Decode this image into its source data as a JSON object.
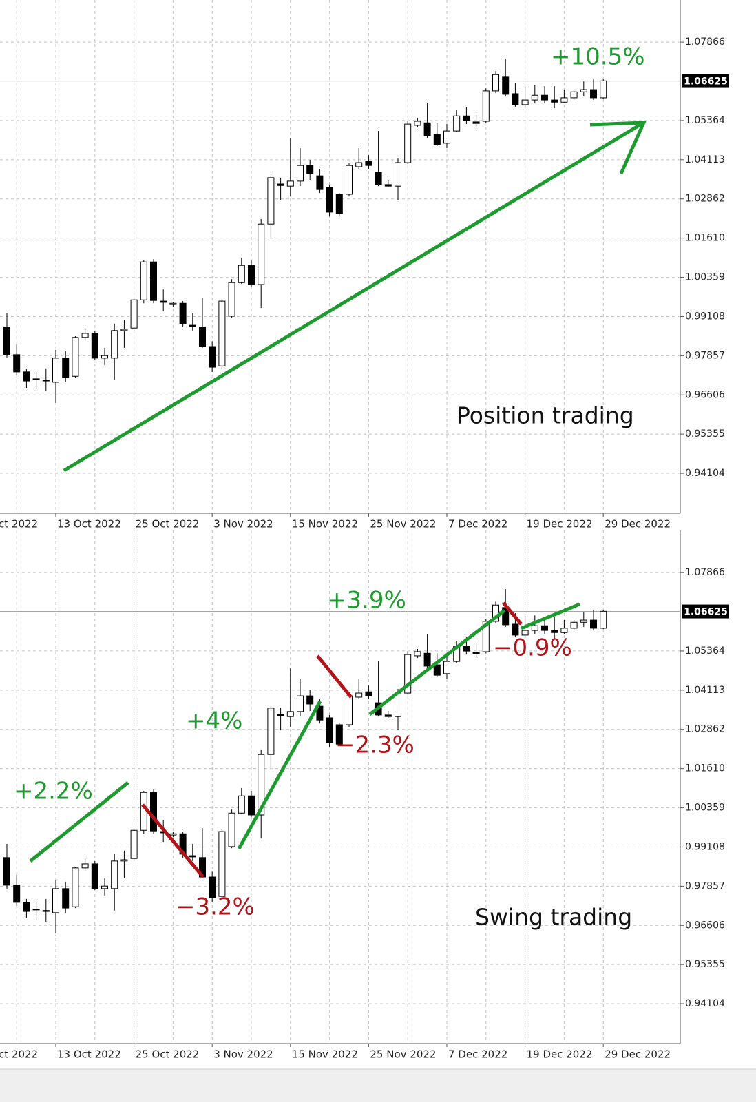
{
  "chart_data": [
    {
      "type": "candlestick",
      "title": "Position trading",
      "categories": [
        null,
        null,
        null,
        null,
        null,
        "13 Oct 2022",
        null,
        null,
        null,
        null,
        null,
        null,
        null,
        "25 Oct 2022",
        null,
        null,
        null,
        null,
        null,
        null,
        null,
        "3 Nov 2022",
        null,
        null,
        null,
        null,
        null,
        null,
        null,
        "15 Nov 2022",
        null,
        null,
        null,
        null,
        null,
        null,
        null,
        "25 Nov 2022",
        null,
        null,
        null,
        null,
        null,
        null,
        null,
        "7 Dec 2022",
        null,
        null,
        null,
        null,
        null,
        null,
        null,
        "19 Dec 2022",
        null,
        null,
        null,
        null,
        null,
        null,
        null,
        "29 Dec 2022"
      ],
      "clipped_x_label": "ct 2022",
      "open": [
        0.9877,
        0.9789,
        0.9734,
        0.9712,
        0.9708,
        0.9701,
        0.9778,
        0.972,
        0.9844,
        0.9857,
        0.9778,
        0.9778,
        0.9866,
        0.9874,
        0.9964,
        1.0085,
        0.996,
        0.9949,
        0.9953,
        0.9883,
        0.9877,
        0.9815,
        0.9753,
        0.9912,
        1.0019,
        1.0074,
        1.0013,
        1.0206,
        1.0334,
        1.0327,
        1.0343,
        1.0393,
        1.036,
        1.0323,
        1.0301,
        1.0301,
        1.0389,
        1.0406,
        1.0371,
        1.0332,
        1.0327,
        1.0402,
        1.0521,
        1.0529,
        1.0492,
        1.0464,
        1.0503,
        1.0551,
        1.0532,
        1.0534,
        1.0631,
        1.0675,
        1.0622,
        1.0587,
        1.0602,
        1.0617,
        1.0602,
        1.0595,
        1.0609,
        1.0628,
        1.0635,
        1.0609
      ],
      "high": [
        0.9921,
        0.9822,
        0.9745,
        0.9734,
        0.9745,
        0.9804,
        0.98,
        0.9848,
        0.9874,
        0.9866,
        0.9811,
        0.9888,
        0.9899,
        0.9969,
        1.009,
        1.0094,
        0.9997,
        0.9958,
        0.996,
        0.9921,
        0.9971,
        0.9832,
        0.9967,
        1.003,
        1.0099,
        1.009,
        1.0222,
        1.036,
        1.0354,
        1.0481,
        1.0448,
        1.0411,
        1.0382,
        1.0332,
        1.0305,
        1.0402,
        1.0448,
        1.0426,
        1.0503,
        1.0345,
        1.0415,
        1.0536,
        1.0543,
        1.0591,
        1.0529,
        1.0525,
        1.0569,
        1.058,
        1.0558,
        1.0639,
        1.0694,
        1.0734,
        1.0657,
        1.0646,
        1.065,
        1.0646,
        1.0646,
        1.0635,
        1.0635,
        1.0661,
        1.0668,
        1.0668
      ],
      "low": [
        0.9778,
        0.9723,
        0.9683,
        0.9679,
        0.9672,
        0.9635,
        0.9701,
        0.9716,
        0.9835,
        0.9773,
        0.9756,
        0.9708,
        0.9811,
        0.9866,
        0.9953,
        0.9953,
        0.9927,
        0.9942,
        0.9877,
        0.9866,
        0.9811,
        0.9734,
        0.9745,
        0.9907,
        1.0015,
        1.0006,
        0.9938,
        1.0162,
        1.0283,
        1.0294,
        1.0327,
        1.0345,
        1.0305,
        1.023,
        1.0233,
        1.0294,
        1.0382,
        1.0382,
        1.0327,
        1.0323,
        1.0283,
        1.0397,
        1.0514,
        1.0481,
        1.0455,
        1.0448,
        1.0499,
        1.0525,
        1.0514,
        1.0529,
        1.0624,
        1.0613,
        1.058,
        1.0576,
        1.0591,
        1.0591,
        1.0576,
        1.0591,
        1.0602,
        1.0613,
        1.0602,
        1.0606
      ],
      "close": [
        0.9789,
        0.9734,
        0.9705,
        0.971,
        0.9705,
        0.9778,
        0.9716,
        0.9844,
        0.9857,
        0.9778,
        0.9786,
        0.9866,
        0.987,
        0.9964,
        1.0085,
        0.9962,
        0.9956,
        0.9953,
        0.9888,
        0.9879,
        0.9815,
        0.9749,
        0.996,
        1.0019,
        1.0074,
        1.0013,
        1.0206,
        1.0354,
        1.0329,
        1.0343,
        1.0393,
        1.0367,
        1.0316,
        1.0244,
        1.0239,
        1.0393,
        1.0402,
        1.0393,
        1.0332,
        1.0327,
        1.0402,
        1.0525,
        1.0534,
        1.0488,
        1.0459,
        1.0503,
        1.0551,
        1.0536,
        1.0527,
        1.0631,
        1.0683,
        1.062,
        1.0587,
        1.0602,
        1.0617,
        1.0602,
        1.0595,
        1.0609,
        1.0628,
        1.0635,
        1.0609,
        1.0663
      ],
      "ylim": [
        0.9283,
        1.0921
      ],
      "yticks": [
        0.94104,
        0.95355,
        0.96606,
        0.97857,
        0.99108,
        1.00359,
        {
          "value": 1.0161,
          "label": "1.01610"
        },
        1.02862,
        1.04113,
        1.05364,
        1.07866
      ],
      "last_price": 1.06625,
      "grid": true,
      "up_color": "#ffffff",
      "down_color": "#000000",
      "trend_colors": {
        "up": "#1f9a30",
        "down": "#b0141a"
      },
      "annotations": [
        {
          "text": "+10.5%",
          "color": "#1f9a30"
        }
      ]
    },
    {
      "type": "candlestick",
      "title": "Swing trading",
      "categories": [
        null,
        null,
        null,
        null,
        null,
        "13 Oct 2022",
        null,
        null,
        null,
        null,
        null,
        null,
        null,
        "25 Oct 2022",
        null,
        null,
        null,
        null,
        null,
        null,
        null,
        "3 Nov 2022",
        null,
        null,
        null,
        null,
        null,
        null,
        null,
        "15 Nov 2022",
        null,
        null,
        null,
        null,
        null,
        null,
        null,
        "25 Nov 2022",
        null,
        null,
        null,
        null,
        null,
        null,
        null,
        "7 Dec 2022",
        null,
        null,
        null,
        null,
        null,
        null,
        null,
        "19 Dec 2022",
        null,
        null,
        null,
        null,
        null,
        null,
        null,
        "29 Dec 2022"
      ],
      "clipped_x_label": "ct 2022",
      "open": [
        0.9877,
        0.9789,
        0.9734,
        0.9712,
        0.9708,
        0.9701,
        0.9778,
        0.972,
        0.9844,
        0.9857,
        0.9778,
        0.9778,
        0.9866,
        0.9874,
        0.9964,
        1.0085,
        0.996,
        0.9949,
        0.9953,
        0.9883,
        0.9877,
        0.9815,
        0.9753,
        0.9912,
        1.0019,
        1.0074,
        1.0013,
        1.0206,
        1.0334,
        1.0327,
        1.0343,
        1.0393,
        1.036,
        1.0323,
        1.0301,
        1.0301,
        1.0389,
        1.0406,
        1.0371,
        1.0332,
        1.0327,
        1.0402,
        1.0521,
        1.0529,
        1.0492,
        1.0464,
        1.0503,
        1.0551,
        1.0532,
        1.0534,
        1.0631,
        1.0675,
        1.0622,
        1.0587,
        1.0602,
        1.0617,
        1.0602,
        1.0595,
        1.0609,
        1.0628,
        1.0635,
        1.0609
      ],
      "high": [
        0.9921,
        0.9822,
        0.9745,
        0.9734,
        0.9745,
        0.9804,
        0.98,
        0.9848,
        0.9874,
        0.9866,
        0.9811,
        0.9888,
        0.9899,
        0.9969,
        1.009,
        1.0094,
        0.9997,
        0.9958,
        0.996,
        0.9921,
        0.9971,
        0.9832,
        0.9967,
        1.003,
        1.0099,
        1.009,
        1.0222,
        1.036,
        1.0354,
        1.0481,
        1.0448,
        1.0411,
        1.0382,
        1.0332,
        1.0305,
        1.0402,
        1.0448,
        1.0426,
        1.0503,
        1.0345,
        1.0415,
        1.0536,
        1.0543,
        1.0591,
        1.0529,
        1.0525,
        1.0569,
        1.058,
        1.0558,
        1.0639,
        1.0694,
        1.0734,
        1.0657,
        1.0646,
        1.065,
        1.0646,
        1.0646,
        1.0635,
        1.0635,
        1.0661,
        1.0668,
        1.0668
      ],
      "low": [
        0.9778,
        0.9723,
        0.9683,
        0.9679,
        0.9672,
        0.9635,
        0.9701,
        0.9716,
        0.9835,
        0.9773,
        0.9756,
        0.9708,
        0.9811,
        0.9866,
        0.9953,
        0.9953,
        0.9927,
        0.9942,
        0.9877,
        0.9866,
        0.9811,
        0.9734,
        0.9745,
        0.9907,
        1.0015,
        1.0006,
        0.9938,
        1.0162,
        1.0283,
        1.0294,
        1.0327,
        1.0345,
        1.0305,
        1.023,
        1.0233,
        1.0294,
        1.0382,
        1.0382,
        1.0327,
        1.0323,
        1.0283,
        1.0397,
        1.0514,
        1.0481,
        1.0455,
        1.0448,
        1.0499,
        1.0525,
        1.0514,
        1.0529,
        1.0624,
        1.0613,
        1.058,
        1.0576,
        1.0591,
        1.0591,
        1.0576,
        1.0591,
        1.0602,
        1.0613,
        1.0602,
        1.0606
      ],
      "close": [
        0.9789,
        0.9734,
        0.9705,
        0.971,
        0.9705,
        0.9778,
        0.9716,
        0.9844,
        0.9857,
        0.9778,
        0.9786,
        0.9866,
        0.987,
        0.9964,
        1.0085,
        0.9962,
        0.9956,
        0.9953,
        0.9888,
        0.9879,
        0.9815,
        0.9749,
        0.996,
        1.0019,
        1.0074,
        1.0013,
        1.0206,
        1.0354,
        1.0329,
        1.0343,
        1.0393,
        1.0367,
        1.0316,
        1.0244,
        1.0239,
        1.0393,
        1.0402,
        1.0393,
        1.0332,
        1.0327,
        1.0402,
        1.0525,
        1.0534,
        1.0488,
        1.0459,
        1.0503,
        1.0551,
        1.0536,
        1.0527,
        1.0631,
        1.0683,
        1.062,
        1.0587,
        1.0602,
        1.0617,
        1.0602,
        1.0595,
        1.0609,
        1.0628,
        1.0635,
        1.0609,
        1.0663
      ],
      "ylim": [
        0.9283,
        1.0921
      ],
      "yticks": [
        0.94104,
        0.95355,
        0.96606,
        0.97857,
        0.99108,
        1.00359,
        {
          "value": 1.0161,
          "label": "1.01610"
        },
        1.02862,
        1.04113,
        1.05364,
        1.07866
      ],
      "last_price": 1.06625,
      "grid": true,
      "up_color": "#ffffff",
      "down_color": "#000000",
      "trend_colors": {
        "up": "#1f9a30",
        "down": "#b0141a"
      },
      "annotations": [
        {
          "text": "+2.2%",
          "color": "#1f9a30"
        },
        {
          "text": "−3.2%",
          "color": "#b0141a"
        },
        {
          "text": "+4%",
          "color": "#1f9a30"
        },
        {
          "text": "+3.9%",
          "color": "#1f9a30"
        },
        {
          "text": "−2.3%",
          "color": "#b0141a"
        },
        {
          "text": "−0.9%",
          "color": "#b0141a"
        }
      ]
    }
  ]
}
